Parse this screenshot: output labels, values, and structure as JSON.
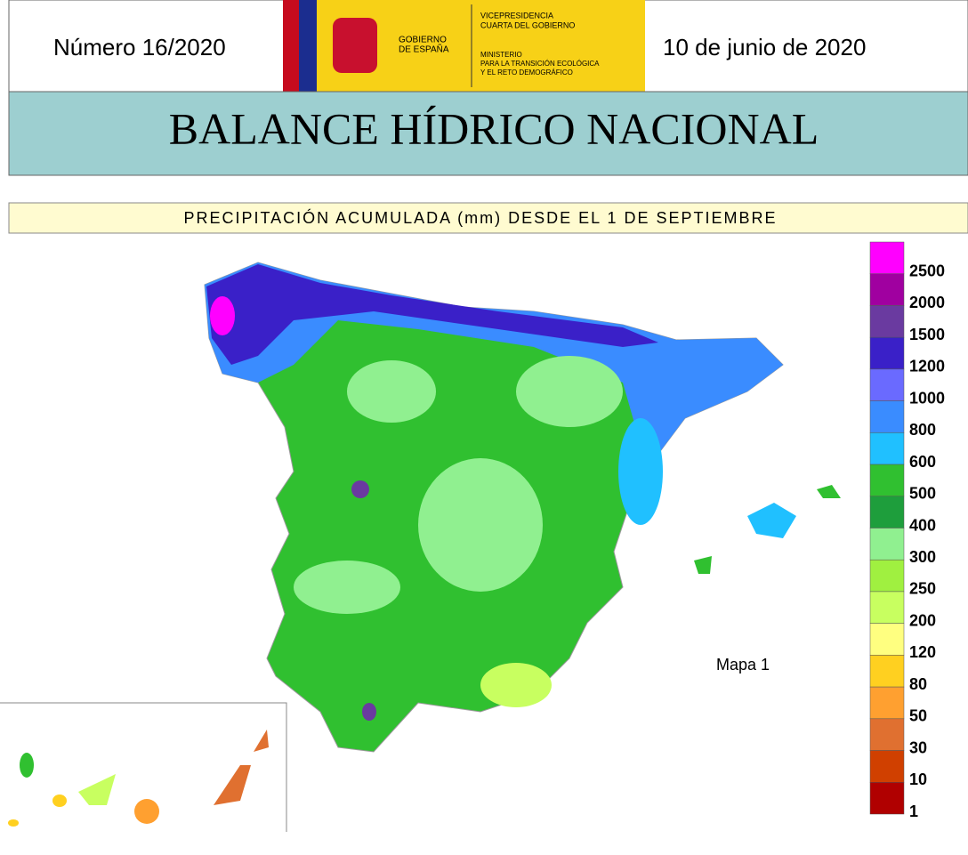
{
  "header": {
    "number": "Número 16/2020",
    "date": "10 de junio de 2020",
    "logo": {
      "government": [
        "GOBIERNO",
        "DE ESPAÑA"
      ],
      "vicepresidency": [
        "VICEPRESIDENCIA",
        "CUARTA DEL GOBIERNO"
      ],
      "ministry": [
        "MINISTERIO",
        "PARA LA TRANSICIÓN ECOLÓGICA",
        "Y EL RETO DEMOGRÁFICO"
      ]
    },
    "title": "BALANCE HÍDRICO NACIONAL"
  },
  "map": {
    "subtitle": "PRECIPITACIÓN ACUMULADA (mm) DESDE EL 1 DE SEPTIEMBRE",
    "label": "Mapa 1",
    "legend": [
      {
        "label": "2500",
        "color": "#ff00ff"
      },
      {
        "label": "2000",
        "color": "#a000a0"
      },
      {
        "label": "1500",
        "color": "#6a3aa0"
      },
      {
        "label": "1200",
        "color": "#3a20c8"
      },
      {
        "label": "1000",
        "color": "#6a6aff"
      },
      {
        "label": "800",
        "color": "#3a8cff"
      },
      {
        "label": "600",
        "color": "#20c0ff"
      },
      {
        "label": "500",
        "color": "#30c030"
      },
      {
        "label": "400",
        "color": "#1e9e3c"
      },
      {
        "label": "300",
        "color": "#90f090"
      },
      {
        "label": "250",
        "color": "#a0f040"
      },
      {
        "label": "200",
        "color": "#c8ff60"
      },
      {
        "label": "120",
        "color": "#ffff80"
      },
      {
        "label": "80",
        "color": "#ffd020"
      },
      {
        "label": "50",
        "color": "#ffa030"
      },
      {
        "label": "30",
        "color": "#e07030"
      },
      {
        "label": "10",
        "color": "#d04000"
      },
      {
        "label": "1",
        "color": "#b00000"
      }
    ]
  }
}
